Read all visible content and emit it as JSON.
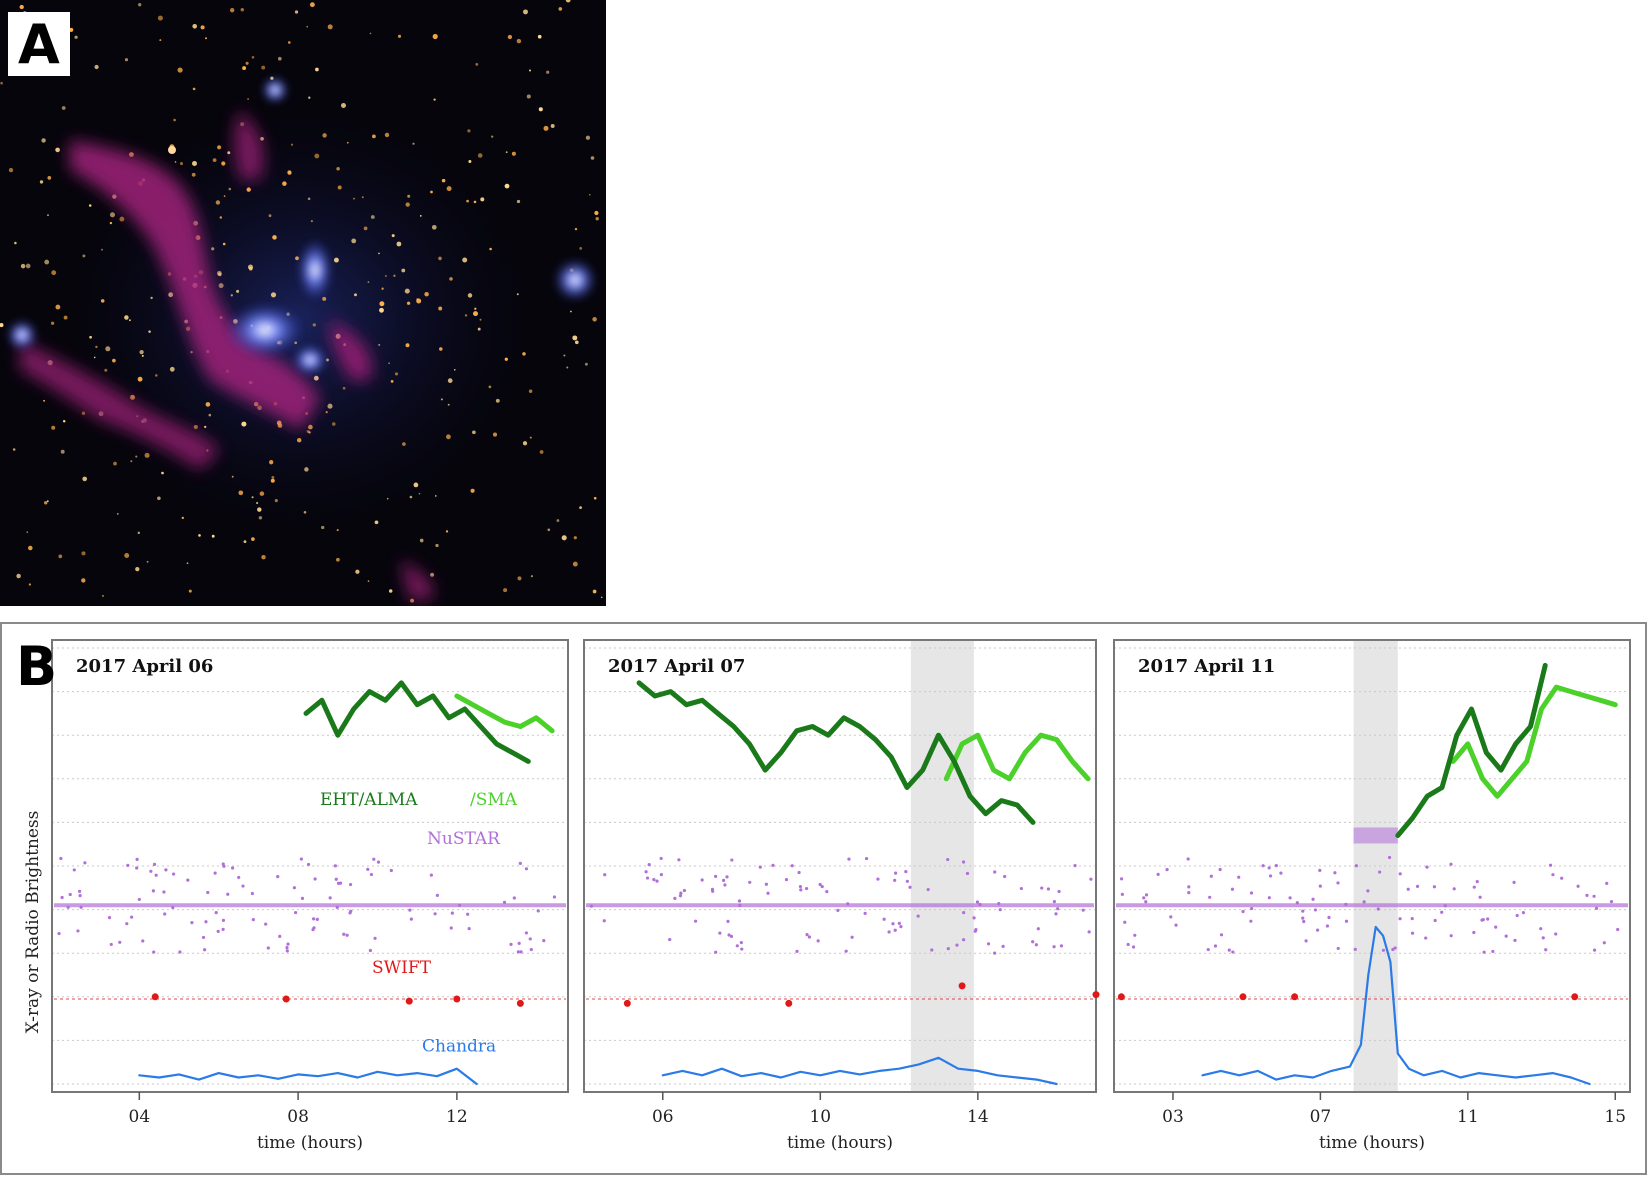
{
  "panel_a": {
    "label": "A"
  },
  "panel_b": {
    "label": "B"
  },
  "colors": {
    "eht_alma": "#1a7a1a",
    "sma": "#4cd12a",
    "nustar": "#b070d8",
    "swift": "#e01818",
    "chandra": "#2a7ae8",
    "flare_band": "#e6e6e6",
    "grid": "#c9c9c9"
  },
  "chart_data": [
    {
      "type": "line",
      "date_label": "2017 April 06",
      "xlabel": "time (hours)",
      "ylabel": "X-ray or Radio Brightness",
      "xlim": [
        1.8,
        14.8
      ],
      "x_ticks": [
        "04",
        "08",
        "12"
      ],
      "x_tick_values": [
        4,
        8,
        12
      ],
      "series_labels": [
        {
          "text": "EHT/ALMA",
          "series": "eht_alma"
        },
        {
          "text": "/SMA",
          "series": "sma"
        },
        {
          "text": "NuSTAR",
          "series": "nustar"
        },
        {
          "text": "SWIFT",
          "series": "swift"
        },
        {
          "text": "Chandra",
          "series": "chandra"
        }
      ],
      "flare_band": null,
      "eht_alma": {
        "x": [
          8.2,
          8.6,
          9.0,
          9.4,
          9.8,
          10.2,
          10.6,
          11.0,
          11.4,
          11.8,
          12.2,
          12.6,
          13.0,
          13.4,
          13.8
        ],
        "y": [
          8.5,
          8.8,
          8.0,
          8.6,
          9.0,
          8.8,
          9.2,
          8.7,
          8.9,
          8.4,
          8.6,
          8.2,
          7.8,
          7.6,
          7.4
        ]
      },
      "sma": {
        "x": [
          12.0,
          12.4,
          12.8,
          13.2,
          13.6,
          14.0,
          14.4
        ],
        "y": [
          8.9,
          8.7,
          8.5,
          8.3,
          8.2,
          8.4,
          8.1
        ]
      },
      "nustar_level": 4.1,
      "swift": {
        "x": [
          4.4,
          7.7,
          10.8,
          12.0,
          13.6
        ],
        "y": [
          2.0,
          1.95,
          1.9,
          1.95,
          1.85
        ]
      },
      "chandra": {
        "x": [
          4.0,
          4.5,
          5.0,
          5.5,
          6.0,
          6.5,
          7.0,
          7.5,
          8.0,
          8.5,
          9.0,
          9.5,
          10.0,
          10.5,
          11.0,
          11.5,
          12.0,
          12.5
        ],
        "y": [
          0.2,
          0.15,
          0.22,
          0.1,
          0.25,
          0.15,
          0.2,
          0.12,
          0.22,
          0.18,
          0.25,
          0.15,
          0.28,
          0.2,
          0.25,
          0.18,
          0.35,
          0.0
        ]
      }
    },
    {
      "type": "line",
      "date_label": "2017 April 07",
      "xlabel": "time (hours)",
      "ylabel": "",
      "xlim": [
        4.0,
        17.0
      ],
      "x_ticks": [
        "06",
        "10",
        "14"
      ],
      "x_tick_values": [
        6,
        10,
        14
      ],
      "flare_band": [
        12.3,
        13.9
      ],
      "eht_alma": {
        "x": [
          5.4,
          5.8,
          6.2,
          6.6,
          7.0,
          7.4,
          7.8,
          8.2,
          8.6,
          9.0,
          9.4,
          9.8,
          10.2,
          10.6,
          11.0,
          11.4,
          11.8,
          12.2,
          12.6,
          13.0,
          13.4,
          13.8,
          14.2,
          14.6,
          15.0,
          15.4
        ],
        "y": [
          9.2,
          8.9,
          9.0,
          8.7,
          8.8,
          8.5,
          8.2,
          7.8,
          7.2,
          7.6,
          8.1,
          8.2,
          8.0,
          8.4,
          8.2,
          7.9,
          7.5,
          6.8,
          7.2,
          8.0,
          7.4,
          6.6,
          6.2,
          6.5,
          6.4,
          6.0
        ]
      },
      "sma": {
        "x": [
          13.2,
          13.6,
          14.0,
          14.4,
          14.8,
          15.2,
          15.6,
          16.0,
          16.4,
          16.8
        ],
        "y": [
          7.0,
          7.8,
          8.0,
          7.2,
          7.0,
          7.6,
          8.0,
          7.9,
          7.4,
          7.0
        ]
      },
      "nustar_level": 4.1,
      "swift": {
        "x": [
          5.1,
          9.2,
          13.6,
          17.0
        ],
        "y": [
          1.85,
          1.85,
          2.25,
          2.05
        ]
      },
      "chandra": {
        "x": [
          6.0,
          6.5,
          7.0,
          7.5,
          8.0,
          8.5,
          9.0,
          9.5,
          10.0,
          10.5,
          11.0,
          11.5,
          12.0,
          12.5,
          13.0,
          13.5,
          14.0,
          14.5,
          15.0,
          15.5,
          16.0
        ],
        "y": [
          0.2,
          0.3,
          0.2,
          0.35,
          0.18,
          0.25,
          0.15,
          0.28,
          0.2,
          0.3,
          0.22,
          0.3,
          0.35,
          0.45,
          0.6,
          0.35,
          0.3,
          0.2,
          0.15,
          0.1,
          0.0
        ]
      }
    },
    {
      "type": "line",
      "date_label": "2017 April 11",
      "xlabel": "time (hours)",
      "ylabel": "",
      "xlim": [
        1.4,
        15.4
      ],
      "x_ticks": [
        "03",
        "07",
        "11",
        "15"
      ],
      "x_tick_values": [
        3,
        7,
        11,
        15
      ],
      "flare_band": [
        7.9,
        9.1
      ],
      "eht_alma": {
        "x": [
          9.1,
          9.5,
          9.9,
          10.3,
          10.7,
          11.1,
          11.5,
          11.9,
          12.3,
          12.7,
          13.1
        ],
        "y": [
          5.7,
          6.1,
          6.6,
          6.8,
          8.0,
          8.6,
          7.6,
          7.2,
          7.8,
          8.2,
          9.6
        ]
      },
      "sma": {
        "x": [
          10.6,
          11.0,
          11.4,
          11.8,
          12.2,
          12.6,
          13.0,
          13.4,
          13.8,
          14.2,
          14.6,
          15.0
        ],
        "y": [
          7.4,
          7.8,
          7.0,
          6.6,
          7.0,
          7.4,
          8.6,
          9.1,
          9.0,
          8.9,
          8.8,
          8.7
        ]
      },
      "nustar_level": 4.1,
      "nustar_flare_level": 5.7,
      "swift": {
        "x": [
          1.6,
          4.9,
          6.3,
          13.9
        ],
        "y": [
          2.0,
          2.0,
          2.0,
          2.0
        ]
      },
      "chandra": {
        "x": [
          3.8,
          4.3,
          4.8,
          5.3,
          5.8,
          6.3,
          6.8,
          7.3,
          7.8,
          8.1,
          8.3,
          8.5,
          8.7,
          8.9,
          9.1,
          9.4,
          9.8,
          10.3,
          10.8,
          11.3,
          11.8,
          12.3,
          12.8,
          13.3,
          13.8,
          14.3
        ],
        "y": [
          0.2,
          0.3,
          0.2,
          0.3,
          0.1,
          0.2,
          0.15,
          0.3,
          0.4,
          0.9,
          2.5,
          3.6,
          3.4,
          2.8,
          0.7,
          0.35,
          0.2,
          0.3,
          0.15,
          0.25,
          0.2,
          0.15,
          0.2,
          0.25,
          0.15,
          0.0
        ]
      }
    }
  ]
}
